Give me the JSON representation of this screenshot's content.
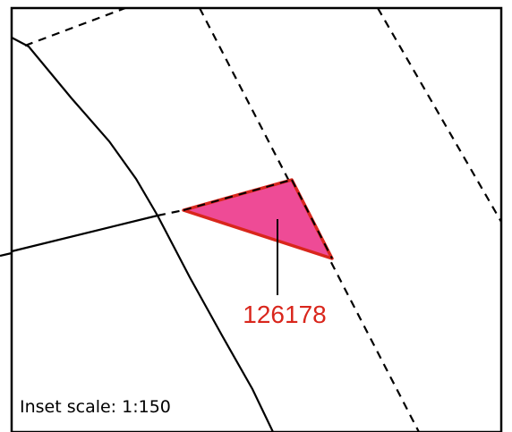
{
  "map": {
    "inset_scale_label": "Inset scale: 1:150",
    "highlighted_parcel": {
      "id_label": "126178",
      "fill_color": "#ee4b96",
      "outline_color": "#d9261c",
      "label_color": "#d9261c"
    },
    "frame_color": "#000000",
    "background_color": "#ffffff",
    "line_color": "#000000"
  }
}
